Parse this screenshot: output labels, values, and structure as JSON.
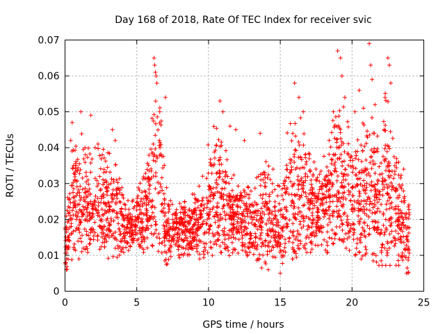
{
  "chart_data": {
    "type": "scatter",
    "title": "Day 168 of 2018, Rate Of TEC Index for receiver svic",
    "xlabel": "GPS time / hours",
    "ylabel": "ROTI / TECUs",
    "xlim": [
      0,
      25
    ],
    "ylim": [
      0,
      0.07
    ],
    "x_ticks": [
      0,
      5,
      10,
      15,
      20,
      25
    ],
    "x_tick_labels": [
      "0",
      "5",
      "10",
      "15",
      "20",
      "25"
    ],
    "y_ticks": [
      0,
      0.01,
      0.02,
      0.03,
      0.04,
      0.05,
      0.06,
      0.07
    ],
    "y_tick_labels": [
      "0",
      "0.01",
      "0.02",
      "0.03",
      "0.04",
      "0.05",
      "0.06",
      "0.07"
    ],
    "grid": true,
    "marker": "plus",
    "series": [
      {
        "name": "ROTI",
        "color": "#ff0000",
        "envelope": {
          "hours": [
            0,
            0.5,
            1,
            1.5,
            2,
            2.5,
            3,
            3.5,
            4,
            4.5,
            5,
            5.5,
            6,
            6.3,
            6.7,
            7,
            7.5,
            8,
            8.5,
            9,
            9.5,
            10,
            10.5,
            11,
            11.5,
            12,
            12.5,
            13,
            13.5,
            14,
            14.5,
            15,
            15.5,
            16,
            16.5,
            17,
            17.5,
            18,
            18.5,
            19,
            19.5,
            20,
            20.5,
            21,
            21.5,
            22,
            22.5,
            23,
            23.5,
            24
          ],
          "roti_low": [
            0.005,
            0.01,
            0.01,
            0.012,
            0.012,
            0.012,
            0.01,
            0.01,
            0.012,
            0.012,
            0.012,
            0.012,
            0.015,
            0.012,
            0.01,
            0.008,
            0.01,
            0.01,
            0.01,
            0.01,
            0.01,
            0.01,
            0.012,
            0.012,
            0.01,
            0.01,
            0.01,
            0.01,
            0.008,
            0.006,
            0.008,
            0.008,
            0.01,
            0.01,
            0.012,
            0.012,
            0.012,
            0.012,
            0.012,
            0.012,
            0.012,
            0.012,
            0.01,
            0.01,
            0.008,
            0.008,
            0.008,
            0.008,
            0.008,
            0.005
          ],
          "roti_high": [
            0.025,
            0.04,
            0.046,
            0.04,
            0.04,
            0.04,
            0.04,
            0.042,
            0.03,
            0.025,
            0.028,
            0.035,
            0.045,
            0.06,
            0.05,
            0.03,
            0.025,
            0.025,
            0.025,
            0.028,
            0.03,
            0.045,
            0.048,
            0.045,
            0.035,
            0.03,
            0.03,
            0.028,
            0.035,
            0.04,
            0.03,
            0.03,
            0.045,
            0.052,
            0.048,
            0.04,
            0.035,
            0.04,
            0.045,
            0.06,
            0.05,
            0.045,
            0.045,
            0.05,
            0.055,
            0.05,
            0.06,
            0.045,
            0.03,
            0.025
          ]
        },
        "points": [
          [
            0.1,
            0.006
          ],
          [
            0.2,
            0.015
          ],
          [
            0.3,
            0.022
          ],
          [
            0.4,
            0.042
          ],
          [
            0.5,
            0.047
          ],
          [
            0.6,
            0.035
          ],
          [
            1.1,
            0.05
          ],
          [
            1.8,
            0.049
          ],
          [
            2.3,
            0.041
          ],
          [
            2.6,
            0.038
          ],
          [
            3.3,
            0.045
          ],
          [
            3.5,
            0.042
          ],
          [
            6.2,
            0.065
          ],
          [
            6.25,
            0.063
          ],
          [
            6.3,
            0.061
          ],
          [
            6.35,
            0.06
          ],
          [
            6.4,
            0.058
          ],
          [
            6.6,
            0.05
          ],
          [
            7.0,
            0.054
          ],
          [
            10.8,
            0.053
          ],
          [
            11.0,
            0.05
          ],
          [
            11.5,
            0.046
          ],
          [
            11.9,
            0.045
          ],
          [
            12.5,
            0.042
          ],
          [
            13.6,
            0.044
          ],
          [
            14.5,
            0.034
          ],
          [
            15.0,
            0.005
          ],
          [
            16.0,
            0.058
          ],
          [
            16.3,
            0.054
          ],
          [
            16.6,
            0.05
          ],
          [
            18.7,
            0.05
          ],
          [
            19.0,
            0.067
          ],
          [
            19.2,
            0.065
          ],
          [
            19.3,
            0.06
          ],
          [
            19.5,
            0.054
          ],
          [
            20.2,
            0.05
          ],
          [
            20.5,
            0.056
          ],
          [
            20.8,
            0.051
          ],
          [
            21.2,
            0.069
          ],
          [
            21.3,
            0.063
          ],
          [
            21.4,
            0.059
          ],
          [
            21.6,
            0.052
          ],
          [
            22.3,
            0.054
          ],
          [
            22.5,
            0.065
          ],
          [
            22.6,
            0.063
          ],
          [
            22.7,
            0.058
          ],
          [
            23.6,
            0.034
          ],
          [
            23.8,
            0.005
          ]
        ]
      }
    ]
  }
}
